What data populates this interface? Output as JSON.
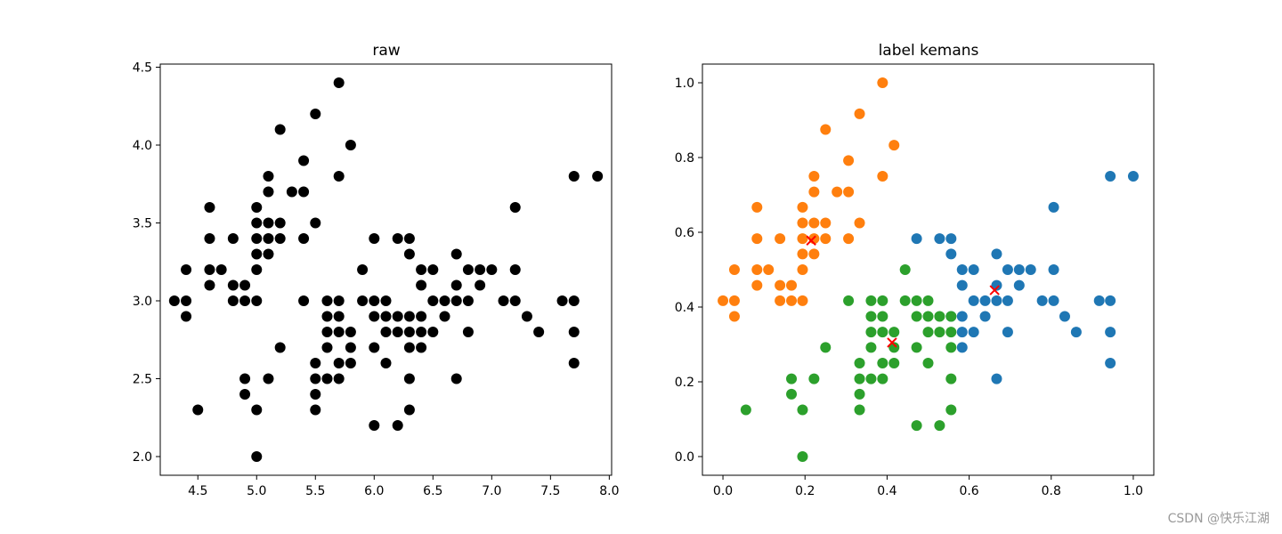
{
  "chart_data": [
    {
      "type": "scatter",
      "title": "raw",
      "xlabel": "",
      "ylabel": "",
      "xlim": [
        4.18,
        8.02
      ],
      "ylim": [
        1.88,
        4.52
      ],
      "xticks": [
        4.5,
        5.0,
        5.5,
        6.0,
        6.5,
        7.0,
        7.5,
        8.0
      ],
      "yticks": [
        2.0,
        2.5,
        3.0,
        3.5,
        4.0,
        4.5
      ],
      "xtick_labels": [
        "4.5",
        "5.0",
        "5.5",
        "6.0",
        "6.5",
        "7.0",
        "7.5",
        "8.0"
      ],
      "ytick_labels": [
        "2.0",
        "2.5",
        "3.0",
        "3.5",
        "4.0",
        "4.5"
      ],
      "grid": false,
      "series": [
        {
          "color": "#000000",
          "marker": "circle",
          "points": [
            [
              5.7,
              4.4
            ],
            [
              5.5,
              4.2
            ],
            [
              5.2,
              4.1
            ],
            [
              5.8,
              4.0
            ],
            [
              5.4,
              3.9
            ],
            [
              5.1,
              3.8
            ],
            [
              5.7,
              3.8
            ],
            [
              7.7,
              3.8
            ],
            [
              7.9,
              3.8
            ],
            [
              5.1,
              3.7
            ],
            [
              5.3,
              3.7
            ],
            [
              5.4,
              3.7
            ],
            [
              4.6,
              3.6
            ],
            [
              5.0,
              3.6
            ],
            [
              7.2,
              3.6
            ],
            [
              5.0,
              3.5
            ],
            [
              5.1,
              3.5
            ],
            [
              5.2,
              3.5
            ],
            [
              5.5,
              3.5
            ],
            [
              4.6,
              3.4
            ],
            [
              4.8,
              3.4
            ],
            [
              5.0,
              3.4
            ],
            [
              5.1,
              3.4
            ],
            [
              5.2,
              3.4
            ],
            [
              5.4,
              3.4
            ],
            [
              6.0,
              3.4
            ],
            [
              6.2,
              3.4
            ],
            [
              6.3,
              3.4
            ],
            [
              5.0,
              3.3
            ],
            [
              5.1,
              3.3
            ],
            [
              6.3,
              3.3
            ],
            [
              6.7,
              3.3
            ],
            [
              4.4,
              3.2
            ],
            [
              4.6,
              3.2
            ],
            [
              4.7,
              3.2
            ],
            [
              5.0,
              3.2
            ],
            [
              5.9,
              3.2
            ],
            [
              6.4,
              3.2
            ],
            [
              6.5,
              3.2
            ],
            [
              6.8,
              3.2
            ],
            [
              6.9,
              3.2
            ],
            [
              7.0,
              3.2
            ],
            [
              7.2,
              3.2
            ],
            [
              4.6,
              3.1
            ],
            [
              4.8,
              3.1
            ],
            [
              4.9,
              3.1
            ],
            [
              6.4,
              3.1
            ],
            [
              6.7,
              3.1
            ],
            [
              6.9,
              3.1
            ],
            [
              4.3,
              3.0
            ],
            [
              4.4,
              3.0
            ],
            [
              4.8,
              3.0
            ],
            [
              4.9,
              3.0
            ],
            [
              5.0,
              3.0
            ],
            [
              5.4,
              3.0
            ],
            [
              5.6,
              3.0
            ],
            [
              5.7,
              3.0
            ],
            [
              5.9,
              3.0
            ],
            [
              6.0,
              3.0
            ],
            [
              6.1,
              3.0
            ],
            [
              6.5,
              3.0
            ],
            [
              6.6,
              3.0
            ],
            [
              6.7,
              3.0
            ],
            [
              6.8,
              3.0
            ],
            [
              7.1,
              3.0
            ],
            [
              7.2,
              3.0
            ],
            [
              7.6,
              3.0
            ],
            [
              7.7,
              3.0
            ],
            [
              4.4,
              2.9
            ],
            [
              5.6,
              2.9
            ],
            [
              5.7,
              2.9
            ],
            [
              6.0,
              2.9
            ],
            [
              6.1,
              2.9
            ],
            [
              6.2,
              2.9
            ],
            [
              6.3,
              2.9
            ],
            [
              6.4,
              2.9
            ],
            [
              6.6,
              2.9
            ],
            [
              7.3,
              2.9
            ],
            [
              5.6,
              2.8
            ],
            [
              5.7,
              2.8
            ],
            [
              5.8,
              2.8
            ],
            [
              6.1,
              2.8
            ],
            [
              6.2,
              2.8
            ],
            [
              6.3,
              2.8
            ],
            [
              6.4,
              2.8
            ],
            [
              6.5,
              2.8
            ],
            [
              6.8,
              2.8
            ],
            [
              7.4,
              2.8
            ],
            [
              7.7,
              2.8
            ],
            [
              5.2,
              2.7
            ],
            [
              5.6,
              2.7
            ],
            [
              5.8,
              2.7
            ],
            [
              6.0,
              2.7
            ],
            [
              6.3,
              2.7
            ],
            [
              6.4,
              2.7
            ],
            [
              5.5,
              2.6
            ],
            [
              5.7,
              2.6
            ],
            [
              5.8,
              2.6
            ],
            [
              6.1,
              2.6
            ],
            [
              7.7,
              2.6
            ],
            [
              4.9,
              2.5
            ],
            [
              5.1,
              2.5
            ],
            [
              5.5,
              2.5
            ],
            [
              5.6,
              2.5
            ],
            [
              5.7,
              2.5
            ],
            [
              6.3,
              2.5
            ],
            [
              6.7,
              2.5
            ],
            [
              4.9,
              2.4
            ],
            [
              5.5,
              2.4
            ],
            [
              4.5,
              2.3
            ],
            [
              5.0,
              2.3
            ],
            [
              5.5,
              2.3
            ],
            [
              6.3,
              2.3
            ],
            [
              6.0,
              2.2
            ],
            [
              6.2,
              2.2
            ],
            [
              5.0,
              2.0
            ]
          ]
        }
      ]
    },
    {
      "type": "scatter",
      "title": "label kemans",
      "xlabel": "",
      "ylabel": "",
      "xlim": [
        -0.05,
        1.05
      ],
      "ylim": [
        -0.05,
        1.05
      ],
      "xticks": [
        0.0,
        0.2,
        0.4,
        0.6,
        0.8,
        1.0
      ],
      "yticks": [
        0.0,
        0.2,
        0.4,
        0.6,
        0.8,
        1.0
      ],
      "xtick_labels": [
        "0.0",
        "0.2",
        "0.4",
        "0.6",
        "0.8",
        "1.0"
      ],
      "ytick_labels": [
        "0.0",
        "0.2",
        "0.4",
        "0.6",
        "0.8",
        "1.0"
      ],
      "grid": false,
      "series": [
        {
          "color": "#1f77b4",
          "marker": "circle",
          "points": [
            [
              0.944,
              0.75
            ],
            [
              1.0,
              0.75
            ],
            [
              0.806,
              0.667
            ],
            [
              0.472,
              0.583
            ],
            [
              0.528,
              0.583
            ],
            [
              0.556,
              0.583
            ],
            [
              0.556,
              0.542
            ],
            [
              0.667,
              0.542
            ],
            [
              0.583,
              0.5
            ],
            [
              0.611,
              0.5
            ],
            [
              0.694,
              0.5
            ],
            [
              0.722,
              0.5
            ],
            [
              0.75,
              0.5
            ],
            [
              0.806,
              0.5
            ],
            [
              0.583,
              0.458
            ],
            [
              0.667,
              0.458
            ],
            [
              0.722,
              0.458
            ],
            [
              0.611,
              0.417
            ],
            [
              0.639,
              0.417
            ],
            [
              0.667,
              0.417
            ],
            [
              0.694,
              0.417
            ],
            [
              0.778,
              0.417
            ],
            [
              0.806,
              0.417
            ],
            [
              0.917,
              0.417
            ],
            [
              0.944,
              0.417
            ],
            [
              0.556,
              0.375
            ],
            [
              0.583,
              0.375
            ],
            [
              0.639,
              0.375
            ],
            [
              0.833,
              0.375
            ],
            [
              0.583,
              0.333
            ],
            [
              0.611,
              0.333
            ],
            [
              0.694,
              0.333
            ],
            [
              0.861,
              0.333
            ],
            [
              0.944,
              0.333
            ],
            [
              0.583,
              0.292
            ],
            [
              0.944,
              0.25
            ],
            [
              0.667,
              0.208
            ]
          ]
        },
        {
          "color": "#ff7f0e",
          "marker": "circle",
          "points": [
            [
              0.389,
              1.0
            ],
            [
              0.333,
              0.917
            ],
            [
              0.25,
              0.875
            ],
            [
              0.417,
              0.833
            ],
            [
              0.306,
              0.792
            ],
            [
              0.222,
              0.75
            ],
            [
              0.389,
              0.75
            ],
            [
              0.222,
              0.708
            ],
            [
              0.278,
              0.708
            ],
            [
              0.306,
              0.708
            ],
            [
              0.083,
              0.667
            ],
            [
              0.194,
              0.667
            ],
            [
              0.194,
              0.625
            ],
            [
              0.222,
              0.625
            ],
            [
              0.25,
              0.625
            ],
            [
              0.333,
              0.625
            ],
            [
              0.083,
              0.583
            ],
            [
              0.139,
              0.583
            ],
            [
              0.194,
              0.583
            ],
            [
              0.222,
              0.583
            ],
            [
              0.25,
              0.583
            ],
            [
              0.306,
              0.583
            ],
            [
              0.194,
              0.542
            ],
            [
              0.222,
              0.542
            ],
            [
              0.028,
              0.5
            ],
            [
              0.083,
              0.5
            ],
            [
              0.111,
              0.5
            ],
            [
              0.194,
              0.5
            ],
            [
              0.083,
              0.458
            ],
            [
              0.139,
              0.458
            ],
            [
              0.167,
              0.458
            ],
            [
              0.0,
              0.417
            ],
            [
              0.028,
              0.417
            ],
            [
              0.139,
              0.417
            ],
            [
              0.167,
              0.417
            ],
            [
              0.194,
              0.417
            ],
            [
              0.028,
              0.375
            ]
          ]
        },
        {
          "color": "#2ca02c",
          "marker": "circle",
          "points": [
            [
              0.444,
              0.5
            ],
            [
              0.306,
              0.417
            ],
            [
              0.361,
              0.417
            ],
            [
              0.389,
              0.417
            ],
            [
              0.444,
              0.417
            ],
            [
              0.472,
              0.417
            ],
            [
              0.5,
              0.417
            ],
            [
              0.361,
              0.375
            ],
            [
              0.389,
              0.375
            ],
            [
              0.472,
              0.375
            ],
            [
              0.5,
              0.375
            ],
            [
              0.528,
              0.375
            ],
            [
              0.556,
              0.375
            ],
            [
              0.361,
              0.333
            ],
            [
              0.389,
              0.333
            ],
            [
              0.417,
              0.333
            ],
            [
              0.5,
              0.333
            ],
            [
              0.528,
              0.333
            ],
            [
              0.556,
              0.333
            ],
            [
              0.25,
              0.292
            ],
            [
              0.361,
              0.292
            ],
            [
              0.417,
              0.292
            ],
            [
              0.472,
              0.292
            ],
            [
              0.556,
              0.292
            ],
            [
              0.333,
              0.25
            ],
            [
              0.389,
              0.25
            ],
            [
              0.417,
              0.25
            ],
            [
              0.5,
              0.25
            ],
            [
              0.167,
              0.208
            ],
            [
              0.222,
              0.208
            ],
            [
              0.333,
              0.208
            ],
            [
              0.361,
              0.208
            ],
            [
              0.389,
              0.208
            ],
            [
              0.556,
              0.208
            ],
            [
              0.167,
              0.167
            ],
            [
              0.333,
              0.167
            ],
            [
              0.056,
              0.125
            ],
            [
              0.194,
              0.125
            ],
            [
              0.333,
              0.125
            ],
            [
              0.556,
              0.125
            ],
            [
              0.472,
              0.083
            ],
            [
              0.528,
              0.083
            ],
            [
              0.194,
              0.0
            ]
          ]
        },
        {
          "color": "#ff0000",
          "marker": "x",
          "points": [
            [
              0.215,
              0.578
            ],
            [
              0.662,
              0.445
            ],
            [
              0.412,
              0.305
            ]
          ]
        }
      ]
    }
  ],
  "watermark": "CSDN @快乐江湖"
}
